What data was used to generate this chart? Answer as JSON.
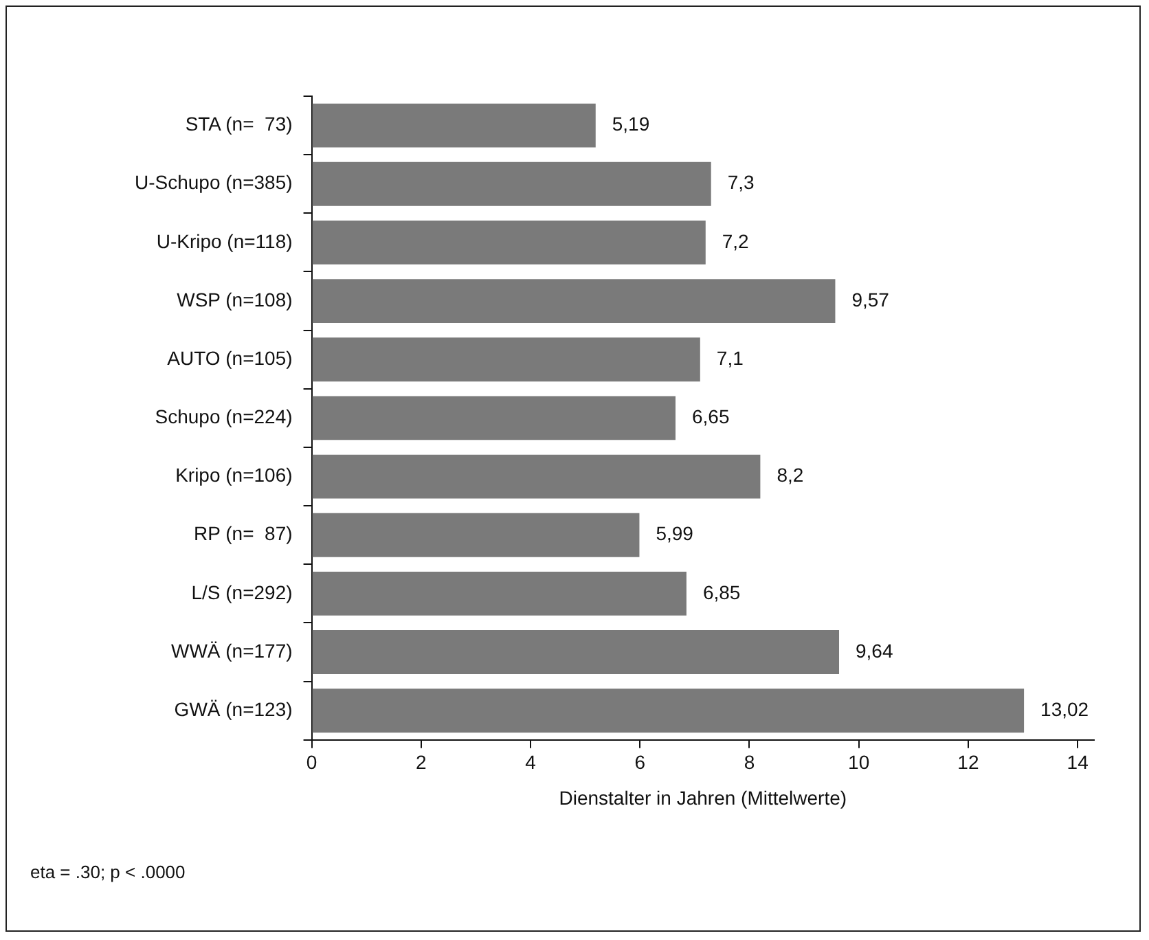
{
  "chart_data": {
    "type": "bar",
    "orientation": "horizontal",
    "xlabel": "Dienstalter in Jahren (Mittelwerte)",
    "categories": [
      "STA (n=  73)",
      "U-Schupo (n=385)",
      "U-Kripo (n=118)",
      "WSP (n=108)",
      "AUTO (n=105)",
      "Schupo (n=224)",
      "Kripo (n=106)",
      "RP (n=  87)",
      "L/S (n=292)",
      "WWÄ (n=177)",
      "GWÄ (n=123)"
    ],
    "values": [
      5.19,
      7.3,
      7.2,
      9.57,
      7.1,
      6.65,
      8.2,
      5.99,
      6.85,
      9.64,
      13.02
    ],
    "value_labels": [
      "5,19",
      "7,3",
      "7,2",
      "9,57",
      "7,1",
      "6,65",
      "8,2",
      "5,99",
      "6,85",
      "9,64",
      "13,02"
    ],
    "color": "#7a7a7a",
    "xlim": [
      0,
      14.3
    ],
    "xticks": [
      0,
      2,
      4,
      6,
      8,
      10,
      12,
      14
    ],
    "grid": false,
    "legend": false,
    "annotations": [
      "eta = .30; p < .0000"
    ]
  }
}
